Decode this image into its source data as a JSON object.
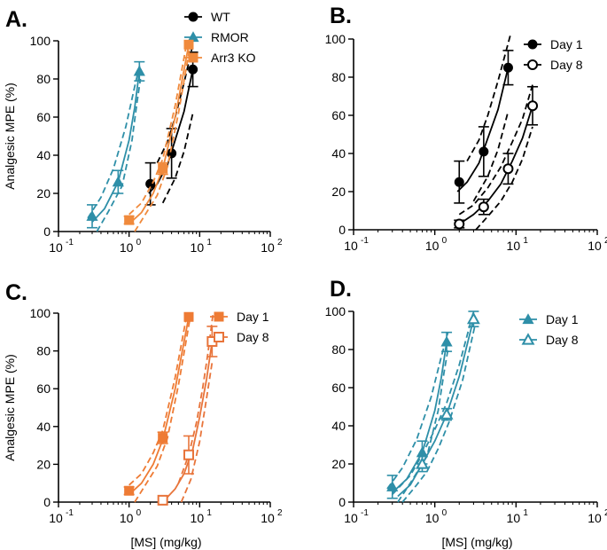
{
  "figure": {
    "colors": {
      "wt": "#000000",
      "rmor": "#2e8fa8",
      "arr3": "#f08a3c",
      "orange_day1": "#ee7b34",
      "orange_day8": "#e8743a",
      "teal": "#2e8fa8"
    }
  },
  "chart_data": [
    {
      "panel_label": "A.",
      "type": "scatter",
      "xscale": "log",
      "xlim": [
        0.1,
        100
      ],
      "ylim": [
        0,
        100
      ],
      "xticks": [
        0.1,
        1,
        10,
        100
      ],
      "xticklabels": [
        [
          "10",
          "-1"
        ],
        [
          "10",
          "0"
        ],
        [
          "10",
          "1"
        ],
        [
          "10",
          "2"
        ]
      ],
      "yticks": [
        "0",
        "20",
        "40",
        "60",
        "80",
        "100"
      ],
      "ylabel": "Analgesic MPE (%)",
      "xlabel": "",
      "legend_position": "top-right",
      "series": [
        {
          "name": "WT",
          "color": "#000000",
          "marker": "circle",
          "filled": true,
          "points": [
            {
              "x": 2,
              "y": 25,
              "err": 11
            },
            {
              "x": 4,
              "y": 41,
              "err": 13
            },
            {
              "x": 8,
              "y": 85,
              "err": 9
            }
          ],
          "fit": [
            [
              1.9,
              20
            ],
            [
              2.5,
              25
            ],
            [
              3.5,
              35
            ],
            [
              4.5,
              48
            ],
            [
              6,
              63
            ],
            [
              8,
              85
            ]
          ],
          "ci_upper": [
            [
              2.5,
              36
            ],
            [
              3.5,
              47
            ],
            [
              4.5,
              60
            ],
            [
              6,
              78
            ],
            [
              8,
              98
            ]
          ],
          "ci_lower": [
            [
              3,
              15
            ],
            [
              4.5,
              28
            ],
            [
              6,
              42
            ],
            [
              8,
              62
            ]
          ]
        },
        {
          "name": "RMOR",
          "color": "#2e8fa8",
          "marker": "triangle",
          "filled": true,
          "points": [
            {
              "x": 0.3,
              "y": 8,
              "err": 6
            },
            {
              "x": 0.7,
              "y": 26,
              "err": 6
            },
            {
              "x": 1.4,
              "y": 84,
              "err": 5
            }
          ],
          "fit": [
            [
              0.3,
              5
            ],
            [
              0.45,
              12
            ],
            [
              0.7,
              26
            ],
            [
              1.0,
              48
            ],
            [
              1.2,
              65
            ],
            [
              1.4,
              84
            ]
          ],
          "ci_upper": [
            [
              0.26,
              7
            ],
            [
              0.4,
              18
            ],
            [
              0.6,
              33
            ],
            [
              0.9,
              55
            ],
            [
              1.2,
              76
            ],
            [
              1.45,
              89
            ]
          ],
          "ci_lower": [
            [
              0.35,
              0
            ],
            [
              0.5,
              10
            ],
            [
              0.8,
              24
            ],
            [
              1.1,
              48
            ],
            [
              1.3,
              68
            ],
            [
              1.45,
              80
            ]
          ]
        },
        {
          "name": "Arr3 KO",
          "color": "#f08a3c",
          "marker": "square",
          "filled": true,
          "points": [
            {
              "x": 1,
              "y": 6,
              "err": 2
            },
            {
              "x": 3,
              "y": 33,
              "err": 3
            },
            {
              "x": 7,
              "y": 98,
              "err": 0
            }
          ],
          "fit": [
            [
              1,
              4
            ],
            [
              1.5,
              10
            ],
            [
              2.2,
              20
            ],
            [
              3,
              33
            ],
            [
              4.5,
              60
            ],
            [
              7,
              98
            ]
          ],
          "ci_upper": [
            [
              1,
              9
            ],
            [
              1.5,
              15
            ],
            [
              2.2,
              26
            ],
            [
              3,
              38
            ],
            [
              4.5,
              66
            ],
            [
              6.5,
              98
            ]
          ],
          "ci_lower": [
            [
              1.2,
              0
            ],
            [
              1.7,
              9
            ],
            [
              2.5,
              19
            ],
            [
              3.5,
              34
            ],
            [
              5,
              62
            ],
            [
              7.2,
              96
            ]
          ]
        }
      ]
    },
    {
      "panel_label": "B.",
      "type": "scatter",
      "xscale": "log",
      "xlim": [
        0.1,
        100
      ],
      "ylim": [
        0,
        100
      ],
      "xticks": [
        0.1,
        1,
        10,
        100
      ],
      "xticklabels": [
        [
          "10",
          "-1"
        ],
        [
          "10",
          "0"
        ],
        [
          "10",
          "1"
        ],
        [
          "10",
          "2"
        ]
      ],
      "yticks": [
        "0",
        "20",
        "40",
        "60",
        "80",
        "100"
      ],
      "ylabel": "",
      "xlabel": "",
      "legend_position": "top-right",
      "series": [
        {
          "name": "Day 1",
          "color": "#000000",
          "marker": "circle",
          "filled": true,
          "points": [
            {
              "x": 2,
              "y": 25,
              "err": 11
            },
            {
              "x": 4,
              "y": 41,
              "err": 13
            },
            {
              "x": 8,
              "y": 85,
              "err": 9
            }
          ],
          "fit": [
            [
              1.9,
              20
            ],
            [
              2.5,
              25
            ],
            [
              3.5,
              35
            ],
            [
              4.5,
              48
            ],
            [
              6,
              63
            ],
            [
              8,
              85
            ]
          ],
          "ci_upper": [
            [
              2.5,
              36
            ],
            [
              3.5,
              47
            ],
            [
              4.5,
              60
            ],
            [
              6,
              78
            ],
            [
              8.5,
              102
            ]
          ],
          "ci_lower": [
            [
              3,
              15
            ],
            [
              4.5,
              28
            ],
            [
              6,
              42
            ],
            [
              8,
              62
            ]
          ]
        },
        {
          "name": "Day 8",
          "color": "#000000",
          "marker": "circle",
          "filled": false,
          "points": [
            {
              "x": 2,
              "y": 3,
              "err": 2
            },
            {
              "x": 4,
              "y": 12,
              "err": 4
            },
            {
              "x": 8,
              "y": 32,
              "err": 8
            },
            {
              "x": 16,
              "y": 65,
              "err": 10
            }
          ],
          "fit": [
            [
              2,
              3
            ],
            [
              3,
              8
            ],
            [
              4.5,
              15
            ],
            [
              6.5,
              24
            ],
            [
              9,
              36
            ],
            [
              12,
              48
            ],
            [
              16,
              65
            ]
          ],
          "ci_upper": [
            [
              2,
              8
            ],
            [
              3,
              13
            ],
            [
              4.5,
              22
            ],
            [
              6.5,
              33
            ],
            [
              9,
              46
            ],
            [
              12,
              58
            ],
            [
              16,
              76
            ]
          ],
          "ci_lower": [
            [
              3.2,
              0
            ],
            [
              4.5,
              7
            ],
            [
              6.5,
              15
            ],
            [
              9,
              25
            ],
            [
              12,
              37
            ],
            [
              16,
              54
            ]
          ]
        }
      ]
    },
    {
      "panel_label": "C.",
      "type": "scatter",
      "xscale": "log",
      "xlim": [
        0.1,
        100
      ],
      "ylim": [
        0,
        100
      ],
      "xticks": [
        0.1,
        1,
        10,
        100
      ],
      "xticklabels": [
        [
          "10",
          "-1"
        ],
        [
          "10",
          "0"
        ],
        [
          "10",
          "1"
        ],
        [
          "10",
          "2"
        ]
      ],
      "yticks": [
        "0",
        "20",
        "40",
        "60",
        "80",
        "100"
      ],
      "ylabel": "Analgesic MPE (%)",
      "xlabel": "[MS] (mg/kg)",
      "legend_position": "top-right",
      "series": [
        {
          "name": "Day 1",
          "color": "#ee7b34",
          "marker": "square",
          "filled": true,
          "points": [
            {
              "x": 1,
              "y": 6,
              "err": 2
            },
            {
              "x": 3,
              "y": 34,
              "err": 3
            },
            {
              "x": 7,
              "y": 98,
              "err": 0
            }
          ],
          "fit": [
            [
              1,
              4
            ],
            [
              1.5,
              10
            ],
            [
              2.2,
              20
            ],
            [
              3,
              33
            ],
            [
              4.5,
              60
            ],
            [
              7,
              98
            ]
          ],
          "ci_upper": [
            [
              1,
              9
            ],
            [
              1.5,
              15
            ],
            [
              2.2,
              26
            ],
            [
              3,
              38
            ],
            [
              4.5,
              66
            ],
            [
              6.5,
              98
            ]
          ],
          "ci_lower": [
            [
              1.2,
              0
            ],
            [
              1.7,
              9
            ],
            [
              2.5,
              19
            ],
            [
              3.5,
              34
            ],
            [
              5,
              62
            ],
            [
              7.2,
              96
            ]
          ]
        },
        {
          "name": "Day 8",
          "color": "#e8743a",
          "marker": "square",
          "filled": false,
          "points": [
            {
              "x": 3,
              "y": 1,
              "err": 0
            },
            {
              "x": 7,
              "y": 25,
              "err": 10
            },
            {
              "x": 15,
              "y": 85,
              "err": 8
            }
          ],
          "fit": [
            [
              3,
              0
            ],
            [
              4.5,
              7
            ],
            [
              6,
              15
            ],
            [
              8,
              28
            ],
            [
              10,
              45
            ],
            [
              12.5,
              65
            ],
            [
              15,
              85
            ]
          ],
          "ci_upper": [
            [
              5,
              10
            ],
            [
              7,
              25
            ],
            [
              9,
              42
            ],
            [
              11,
              60
            ],
            [
              13,
              78
            ],
            [
              15.5,
              100
            ]
          ],
          "ci_lower": [
            [
              5.5,
              0
            ],
            [
              7.5,
              12
            ],
            [
              10,
              32
            ],
            [
              12.5,
              55
            ],
            [
              15,
              74
            ]
          ]
        }
      ]
    },
    {
      "panel_label": "D.",
      "type": "scatter",
      "xscale": "log",
      "xlim": [
        0.1,
        100
      ],
      "ylim": [
        0,
        100
      ],
      "xticks": [
        0.1,
        1,
        10,
        100
      ],
      "xticklabels": [
        [
          "10",
          "-1"
        ],
        [
          "10",
          "0"
        ],
        [
          "10",
          "1"
        ],
        [
          "10",
          "2"
        ]
      ],
      "yticks": [
        "0",
        "20",
        "40",
        "60",
        "80",
        "100"
      ],
      "ylabel": "",
      "xlabel": "[MS] (mg/kg)",
      "legend_position": "top-right",
      "series": [
        {
          "name": "Day 1",
          "color": "#2e8fa8",
          "marker": "triangle",
          "filled": true,
          "points": [
            {
              "x": 0.3,
              "y": 8,
              "err": 6
            },
            {
              "x": 0.7,
              "y": 26,
              "err": 6
            },
            {
              "x": 1.4,
              "y": 84,
              "err": 5
            }
          ],
          "fit": [
            [
              0.3,
              5
            ],
            [
              0.45,
              12
            ],
            [
              0.7,
              26
            ],
            [
              1.0,
              48
            ],
            [
              1.2,
              65
            ],
            [
              1.4,
              84
            ]
          ],
          "ci_upper": [
            [
              0.26,
              7
            ],
            [
              0.4,
              18
            ],
            [
              0.6,
              33
            ],
            [
              0.9,
              55
            ],
            [
              1.2,
              76
            ],
            [
              1.45,
              89
            ]
          ],
          "ci_lower": [
            [
              0.35,
              0
            ],
            [
              0.5,
              10
            ],
            [
              0.8,
              24
            ],
            [
              1.1,
              48
            ],
            [
              1.3,
              68
            ],
            [
              1.45,
              80
            ]
          ]
        },
        {
          "name": "Day 8",
          "color": "#2e8fa8",
          "marker": "triangle",
          "filled": false,
          "points": [
            {
              "x": 0.7,
              "y": 20,
              "err": 4
            },
            {
              "x": 1.4,
              "y": 46,
              "err": 3
            },
            {
              "x": 3,
              "y": 96,
              "err": 4
            }
          ],
          "fit": [
            [
              0.35,
              3
            ],
            [
              0.5,
              9
            ],
            [
              0.7,
              20
            ],
            [
              1.0,
              32
            ],
            [
              1.4,
              46
            ],
            [
              2.0,
              66
            ],
            [
              3,
              96
            ]
          ],
          "ci_upper": [
            [
              0.3,
              4
            ],
            [
              0.5,
              14
            ],
            [
              0.7,
              25
            ],
            [
              1.0,
              38
            ],
            [
              1.4,
              52
            ],
            [
              2.0,
              72
            ],
            [
              3,
              100
            ]
          ],
          "ci_lower": [
            [
              0.4,
              0
            ],
            [
              0.6,
              9
            ],
            [
              0.8,
              16
            ],
            [
              1.1,
              28
            ],
            [
              1.5,
              42
            ],
            [
              2.2,
              64
            ],
            [
              3.1,
              92
            ]
          ]
        }
      ]
    }
  ]
}
